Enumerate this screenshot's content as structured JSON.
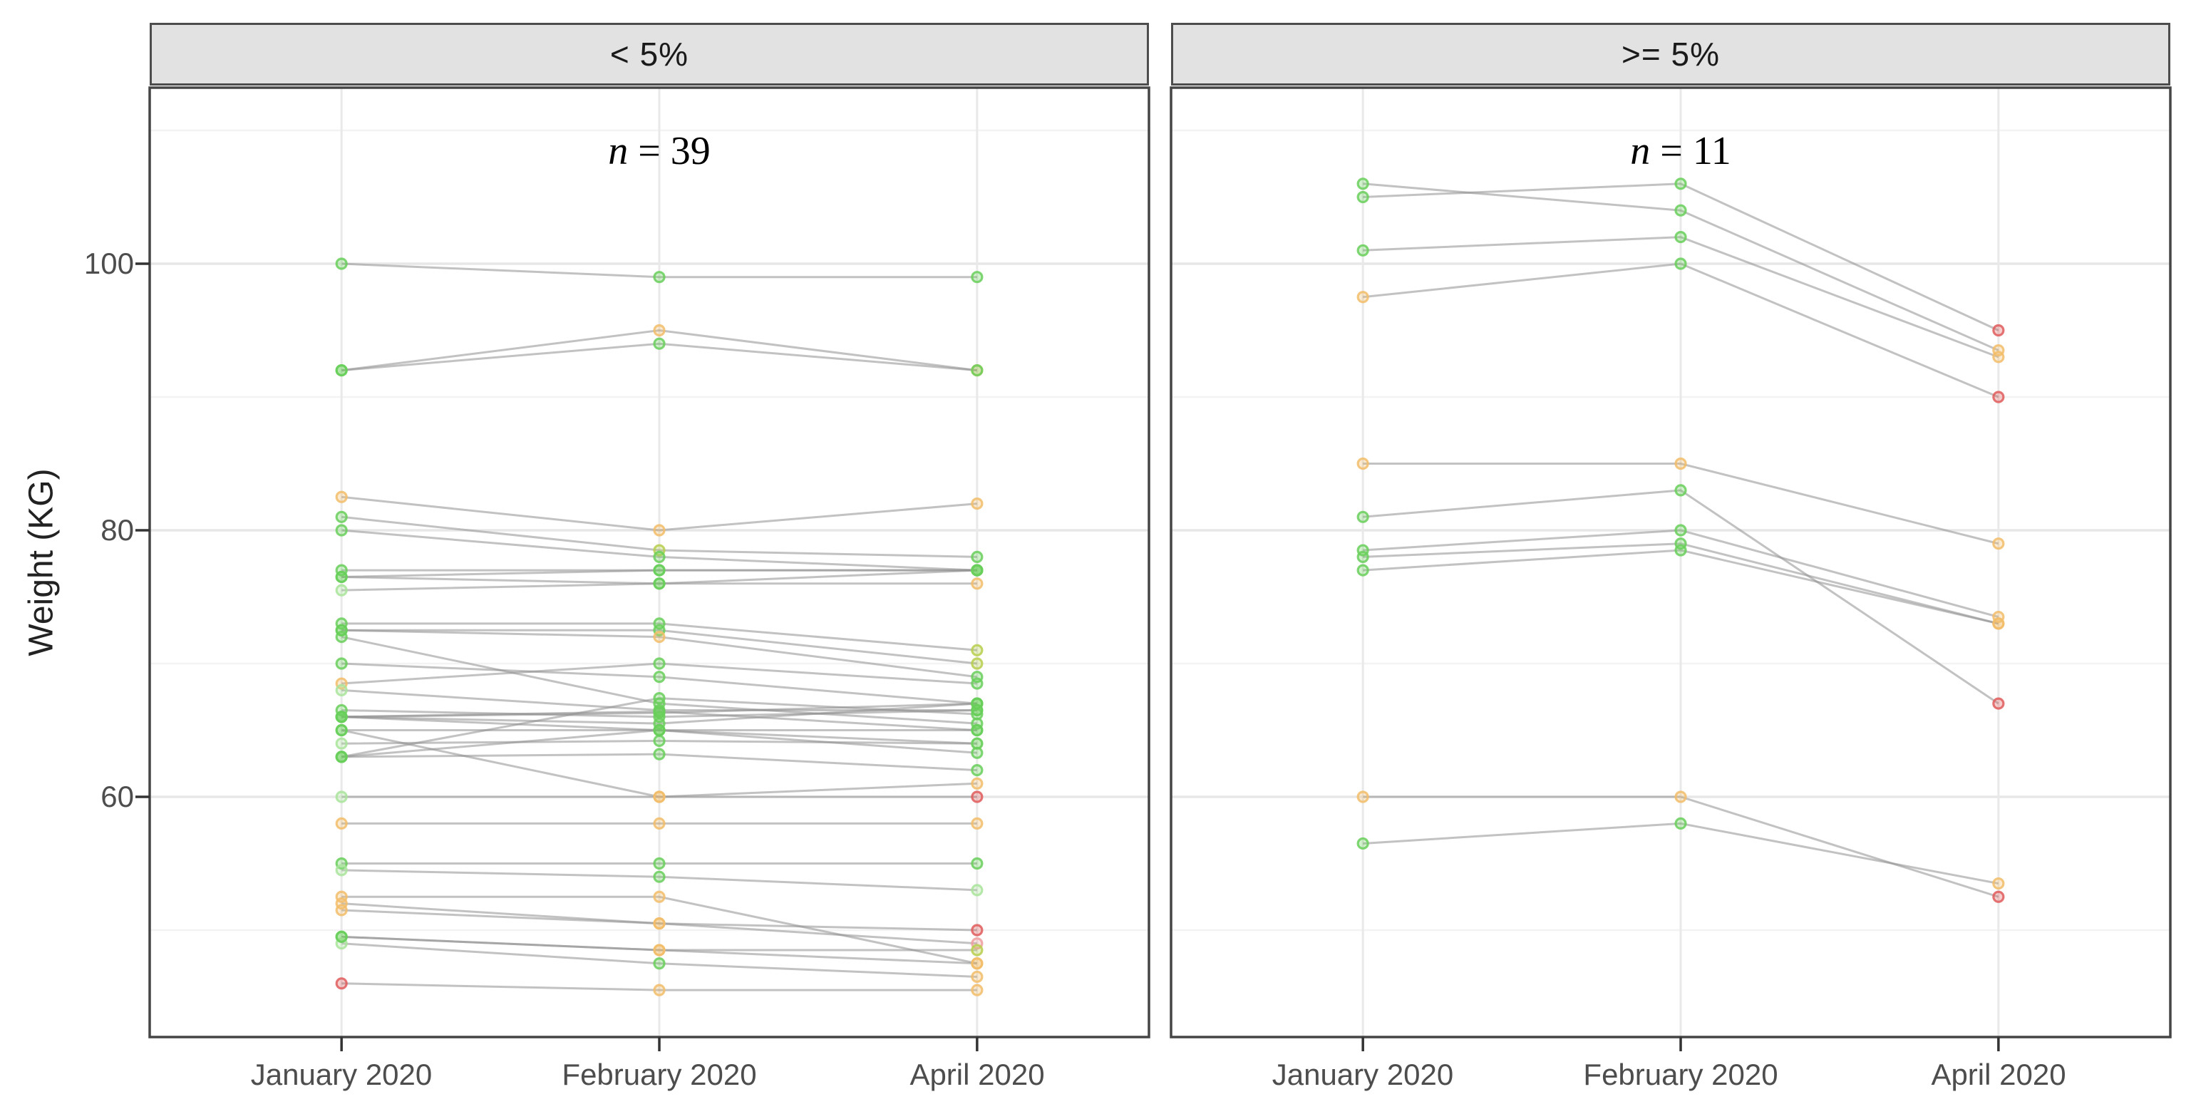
{
  "figure": {
    "y_axis_title": "Weight (KG)",
    "y_tick_labels": [
      "100",
      "80",
      "60"
    ],
    "x_labels": [
      "January 2020",
      "February 2020",
      "April 2020"
    ],
    "panels": [
      {
        "strip_label": "< 5%",
        "annotation_symbol": "n",
        "annotation_rest": " = 39"
      },
      {
        "strip_label": ">= 5%",
        "annotation_symbol": "n",
        "annotation_rest": " = 11"
      }
    ]
  },
  "chart_data": {
    "type": "line",
    "title": "",
    "xlabel": "",
    "ylabel": "Weight (KG)",
    "x_categories": [
      "January 2020",
      "February 2020",
      "April 2020"
    ],
    "y_axis": {
      "major_ticks": [
        100,
        80,
        60
      ],
      "minor_gridlines": [
        110,
        90,
        70,
        50
      ],
      "range": [
        42,
        113
      ]
    },
    "grid": "on",
    "legend": "none",
    "palette": {
      "g": "#69cf5a",
      "lg": "#a9e49b",
      "yg": "#b7cf4e",
      "o": "#f2bd6a",
      "red": "#e05c5c",
      "pink": "#ef9f9f",
      "line": "#8f8f8f"
    },
    "facets": [
      {
        "label": "< 5%",
        "n": 39,
        "series": [
          {
            "values": [
              100,
              99,
              99
            ],
            "colors": [
              "g",
              "g",
              "g"
            ]
          },
          {
            "values": [
              92,
              95,
              92
            ],
            "colors": [
              "g",
              "o",
              "o"
            ]
          },
          {
            "values": [
              92,
              94,
              92
            ],
            "colors": [
              "g",
              "g",
              "g"
            ]
          },
          {
            "values": [
              82.5,
              80,
              82
            ],
            "colors": [
              "o",
              "o",
              "o"
            ]
          },
          {
            "values": [
              81,
              78.5,
              78
            ],
            "colors": [
              "g",
              "yg",
              "g"
            ]
          },
          {
            "values": [
              80,
              78,
              77
            ],
            "colors": [
              "g",
              "g",
              "g"
            ]
          },
          {
            "values": [
              77,
              77,
              77
            ],
            "colors": [
              "g",
              "g",
              "g"
            ]
          },
          {
            "values": [
              76.5,
              77,
              77
            ],
            "colors": [
              "g",
              "g",
              "g"
            ]
          },
          {
            "values": [
              75.5,
              76,
              76
            ],
            "colors": [
              "lg",
              "g",
              "o"
            ]
          },
          {
            "values": [
              76.5,
              76,
              77
            ],
            "colors": [
              "g",
              "g",
              "g"
            ]
          },
          {
            "values": [
              73,
              73,
              71
            ],
            "colors": [
              "g",
              "g",
              "yg"
            ]
          },
          {
            "values": [
              72.5,
              72.5,
              70
            ],
            "colors": [
              "g",
              "g",
              "yg"
            ]
          },
          {
            "values": [
              72.5,
              72,
              69
            ],
            "colors": [
              "g",
              "o",
              "g"
            ]
          },
          {
            "values": [
              72,
              67,
              65.5
            ],
            "colors": [
              "g",
              "g",
              "g"
            ]
          },
          {
            "values": [
              70,
              69,
              67
            ],
            "colors": [
              "g",
              "g",
              "g"
            ]
          },
          {
            "values": [
              68.5,
              70,
              68.5
            ],
            "colors": [
              "o",
              "g",
              "g"
            ]
          },
          {
            "values": [
              68,
              66.5,
              66.5
            ],
            "colors": [
              "lg",
              "g",
              "g"
            ]
          },
          {
            "values": [
              66,
              66.3,
              67
            ],
            "colors": [
              "g",
              "g",
              "g"
            ]
          },
          {
            "values": [
              66,
              65.5,
              67
            ],
            "colors": [
              "g",
              "g",
              "g"
            ]
          },
          {
            "values": [
              66,
              66.4,
              65
            ],
            "colors": [
              "g",
              "g",
              "g"
            ]
          },
          {
            "values": [
              65,
              65,
              65
            ],
            "colors": [
              "g",
              "g",
              "g"
            ]
          },
          {
            "values": [
              64,
              64.2,
              64
            ],
            "colors": [
              "lg",
              "g",
              "lg"
            ]
          },
          {
            "values": [
              63,
              65,
              63.3
            ],
            "colors": [
              "g",
              "g",
              "g"
            ]
          },
          {
            "values": [
              63,
              63.2,
              62
            ],
            "colors": [
              "g",
              "g",
              "g"
            ]
          },
          {
            "values": [
              63,
              67.4,
              66.2
            ],
            "colors": [
              "g",
              "g",
              "g"
            ]
          },
          {
            "values": [
              66.5,
              66,
              66.5
            ],
            "colors": [
              "g",
              "g",
              "g"
            ]
          },
          {
            "values": [
              66,
              65,
              64
            ],
            "colors": [
              "g",
              "g",
              "g"
            ]
          },
          {
            "values": [
              60,
              60,
              60
            ],
            "colors": [
              "lg",
              "o",
              "red"
            ]
          },
          {
            "values": [
              65,
              60,
              61
            ],
            "colors": [
              "g",
              "o",
              "o"
            ]
          },
          {
            "values": [
              58,
              58,
              58
            ],
            "colors": [
              "o",
              "o",
              "o"
            ]
          },
          {
            "values": [
              55,
              55,
              55
            ],
            "colors": [
              "g",
              "g",
              "g"
            ]
          },
          {
            "values": [
              54.5,
              54,
              53
            ],
            "colors": [
              "lg",
              "g",
              "lg"
            ]
          },
          {
            "values": [
              52,
              50.5,
              50
            ],
            "colors": [
              "o",
              "o",
              "red"
            ]
          },
          {
            "values": [
              51.5,
              50.5,
              49
            ],
            "colors": [
              "o",
              "o",
              "pink"
            ]
          },
          {
            "values": [
              49.5,
              48.5,
              48.5
            ],
            "colors": [
              "g",
              "o",
              "yg"
            ]
          },
          {
            "values": [
              49,
              47.5,
              46.5
            ],
            "colors": [
              "lg",
              "g",
              "o"
            ]
          },
          {
            "values": [
              49.5,
              48.5,
              47.5
            ],
            "colors": [
              "g",
              "o",
              "o"
            ]
          },
          {
            "values": [
              52.5,
              52.5,
              47.5
            ],
            "colors": [
              "o",
              "o",
              "o"
            ]
          },
          {
            "values": [
              46,
              45.5,
              45.5
            ],
            "colors": [
              "red",
              "o",
              "o"
            ]
          }
        ]
      },
      {
        "label": ">= 5%",
        "n": 11,
        "series": [
          {
            "values": [
              105,
              106,
              95
            ],
            "colors": [
              "g",
              "g",
              "red"
            ]
          },
          {
            "values": [
              106,
              104,
              93.5
            ],
            "colors": [
              "g",
              "g",
              "o"
            ]
          },
          {
            "values": [
              101,
              102,
              93
            ],
            "colors": [
              "g",
              "g",
              "o"
            ]
          },
          {
            "values": [
              97.5,
              100,
              90
            ],
            "colors": [
              "o",
              "g",
              "red"
            ]
          },
          {
            "values": [
              85,
              85,
              79
            ],
            "colors": [
              "o",
              "o",
              "o"
            ]
          },
          {
            "values": [
              81,
              83,
              67
            ],
            "colors": [
              "g",
              "g",
              "red"
            ]
          },
          {
            "values": [
              78.5,
              80,
              73.5
            ],
            "colors": [
              "g",
              "g",
              "o"
            ]
          },
          {
            "values": [
              78,
              79,
              73
            ],
            "colors": [
              "g",
              "g",
              "o"
            ]
          },
          {
            "values": [
              77,
              78.5,
              73
            ],
            "colors": [
              "g",
              "g",
              "o"
            ]
          },
          {
            "values": [
              60,
              60,
              52.5
            ],
            "colors": [
              "o",
              "o",
              "red"
            ]
          },
          {
            "values": [
              56.5,
              58,
              53.5
            ],
            "colors": [
              "g",
              "g",
              "o"
            ]
          }
        ]
      }
    ]
  }
}
